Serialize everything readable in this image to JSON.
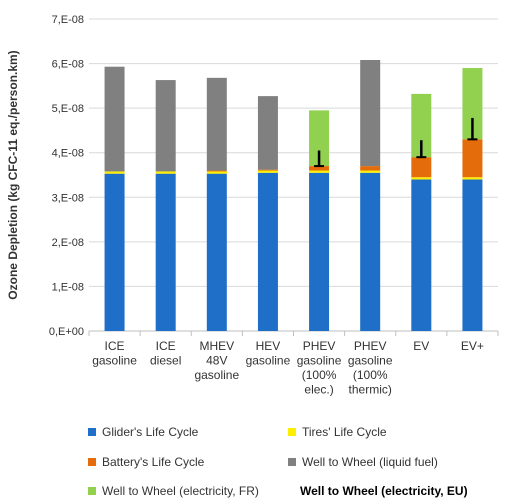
{
  "chart_data": {
    "type": "bar",
    "stacked": true,
    "title": "",
    "xlabel": "",
    "ylabel": "Ozone Depletion (kg CFC-11 eq./person.km)",
    "ylim": [
      0,
      7e-08
    ],
    "yticks": [
      0,
      1e-08,
      2e-08,
      3e-08,
      4e-08,
      5e-08,
      6e-08,
      7e-08
    ],
    "ytick_labels": [
      "0,E+00",
      "1,E-08",
      "2,E-08",
      "3,E-08",
      "4,E-08",
      "5,E-08",
      "6,E-08",
      "7,E-08"
    ],
    "grid": "horizontal",
    "legend_position": "bottom",
    "categories": [
      [
        "ICE",
        "gasoline"
      ],
      [
        "ICE",
        "diesel"
      ],
      [
        "MHEV",
        "48V",
        "gasoline"
      ],
      [
        "HEV",
        "gasoline"
      ],
      [
        "PHEV",
        "gasoline",
        "(100%",
        "elec.)"
      ],
      [
        "PHEV",
        "gasoline",
        "(100%",
        "thermic)"
      ],
      [
        "EV"
      ],
      [
        "EV+"
      ]
    ],
    "series": [
      {
        "name": "Glider's Life Cycle",
        "color": "#1f6fc8",
        "values": [
          3.53e-08,
          3.53e-08,
          3.53e-08,
          3.55e-08,
          3.55e-08,
          3.55e-08,
          3.4e-08,
          3.4e-08
        ]
      },
      {
        "name": "Tires' Life Cycle",
        "color": "#ffee00",
        "values": [
          5e-10,
          5e-10,
          5e-10,
          5e-10,
          5e-10,
          5e-10,
          5e-10,
          5e-10
        ]
      },
      {
        "name": "Battery's Life Cycle",
        "color": "#e46c0a",
        "values": [
          0,
          0,
          2e-10,
          2e-10,
          1e-09,
          1e-09,
          4.5e-09,
          8.5e-09
        ]
      },
      {
        "name": "Well to Wheel (liquid fuel)",
        "color": "#808080",
        "values": [
          2.35e-08,
          2.05e-08,
          2.08e-08,
          1.65e-08,
          0,
          2.38e-08,
          0,
          0
        ]
      },
      {
        "name": "Well to Wheel (electricity, FR)",
        "color": "#92d050",
        "values": [
          0,
          0,
          0,
          0,
          1.25e-08,
          0,
          1.42e-08,
          1.6e-08
        ]
      }
    ],
    "error_bars": [
      {
        "category_index": 4,
        "low": 3.7e-08,
        "high": 4.05e-08
      },
      {
        "category_index": 6,
        "low": 3.9e-08,
        "high": 4.28e-08
      },
      {
        "category_index": 7,
        "low": 4.3e-08,
        "high": 4.78e-08
      }
    ],
    "legend": [
      {
        "label": "Glider's Life Cycle",
        "color": "#1f6fc8"
      },
      {
        "label": "Tires' Life Cycle",
        "color": "#ffee00"
      },
      {
        "label": "Battery's Life Cycle",
        "color": "#e46c0a"
      },
      {
        "label": "Well to Wheel (liquid fuel)",
        "color": "#808080"
      },
      {
        "label": "Well to Wheel (electricity, FR)",
        "color": "#92d050"
      },
      {
        "label": "Well to Wheel (electricity, EU)",
        "color": null,
        "bold": true
      }
    ]
  }
}
